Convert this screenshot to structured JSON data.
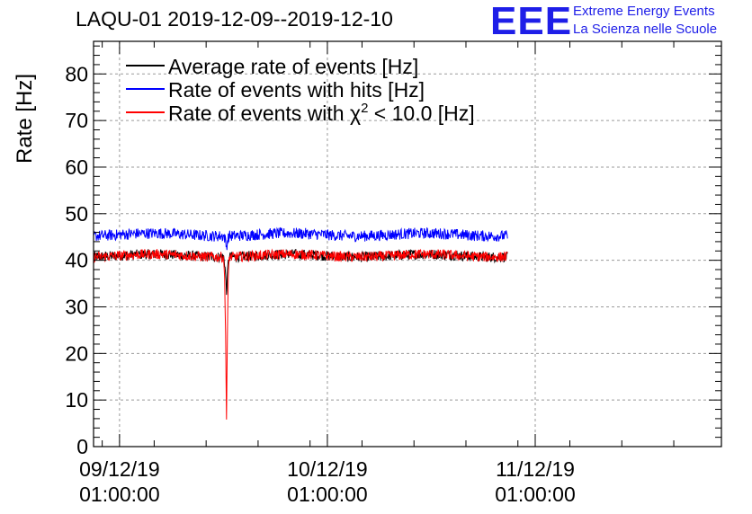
{
  "header": {
    "title": "LAQU-01 2019-12-09--2019-12-10",
    "logo_text": "EEE",
    "logo_line1": "Extreme Energy Events",
    "logo_line2": "La Scienza nelle Scuole"
  },
  "chart_data": {
    "type": "line",
    "title": "LAQU-01 2019-12-09--2019-12-10",
    "ylabel": "Rate [Hz]",
    "xlabel": "",
    "ylim": [
      0,
      87
    ],
    "yticks": [
      0,
      10,
      20,
      30,
      40,
      50,
      60,
      70,
      80
    ],
    "xlim_hours": [
      -3,
      69.5
    ],
    "xticks": [
      {
        "hour": 0,
        "line1": "09/12/19",
        "line2": "01:00:00"
      },
      {
        "hour": 24,
        "line1": "10/12/19",
        "line2": "01:00:00"
      },
      {
        "hour": 48,
        "line1": "11/12/19",
        "line2": "01:00:00"
      }
    ],
    "grid": true,
    "legend_position": "top-left",
    "series": [
      {
        "name": "Average rate of events [Hz]",
        "color": "#000000",
        "baseline": 41,
        "noise": 1.1,
        "start_hour": -3.0,
        "end_hour": 44.8,
        "dip_hour": 12.35,
        "dip_min": 33
      },
      {
        "name": "Rate of events with hits [Hz]",
        "color": "#0000ff",
        "baseline": 45.5,
        "noise": 1.2,
        "start_hour": -3.0,
        "end_hour": 44.8,
        "dip_hour": 12.35,
        "dip_min": 43
      },
      {
        "name": "Rate of events with χ² < 10.0 [Hz]",
        "legend_prefix": "Rate of events with ",
        "legend_chi": "χ",
        "legend_sup": "2",
        "legend_suffix": " < 10.0 [Hz]",
        "color": "#ff0000",
        "baseline": 41,
        "noise": 1.1,
        "start_hour": -3.0,
        "end_hour": 44.8,
        "dip_hour": 12.35,
        "dip_min": 6
      }
    ]
  }
}
